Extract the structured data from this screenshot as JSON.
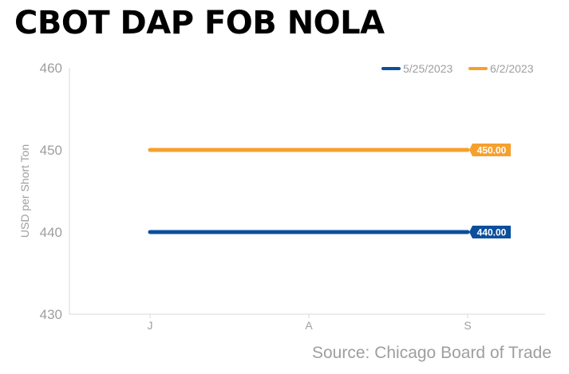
{
  "title": "CBOT DAP FOB NOLA",
  "source": "Source: Chicago Board of Trade",
  "chart_data": {
    "type": "line",
    "title": "CBOT DAP FOB NOLA",
    "xlabel": "",
    "ylabel": "USD per Short Ton",
    "categories": [
      "J",
      "A",
      "S"
    ],
    "ylim": [
      430,
      460
    ],
    "yticks": [
      430,
      440,
      450,
      460
    ],
    "grid": false,
    "legend_position": "top-right",
    "series": [
      {
        "name": "5/25/2023",
        "color": "#0b4f9c",
        "values": [
          440,
          440,
          440
        ],
        "end_label": "440.00"
      },
      {
        "name": "6/2/2023",
        "color": "#f6a02d",
        "values": [
          450,
          450,
          450
        ],
        "end_label": "450.00"
      }
    ]
  }
}
